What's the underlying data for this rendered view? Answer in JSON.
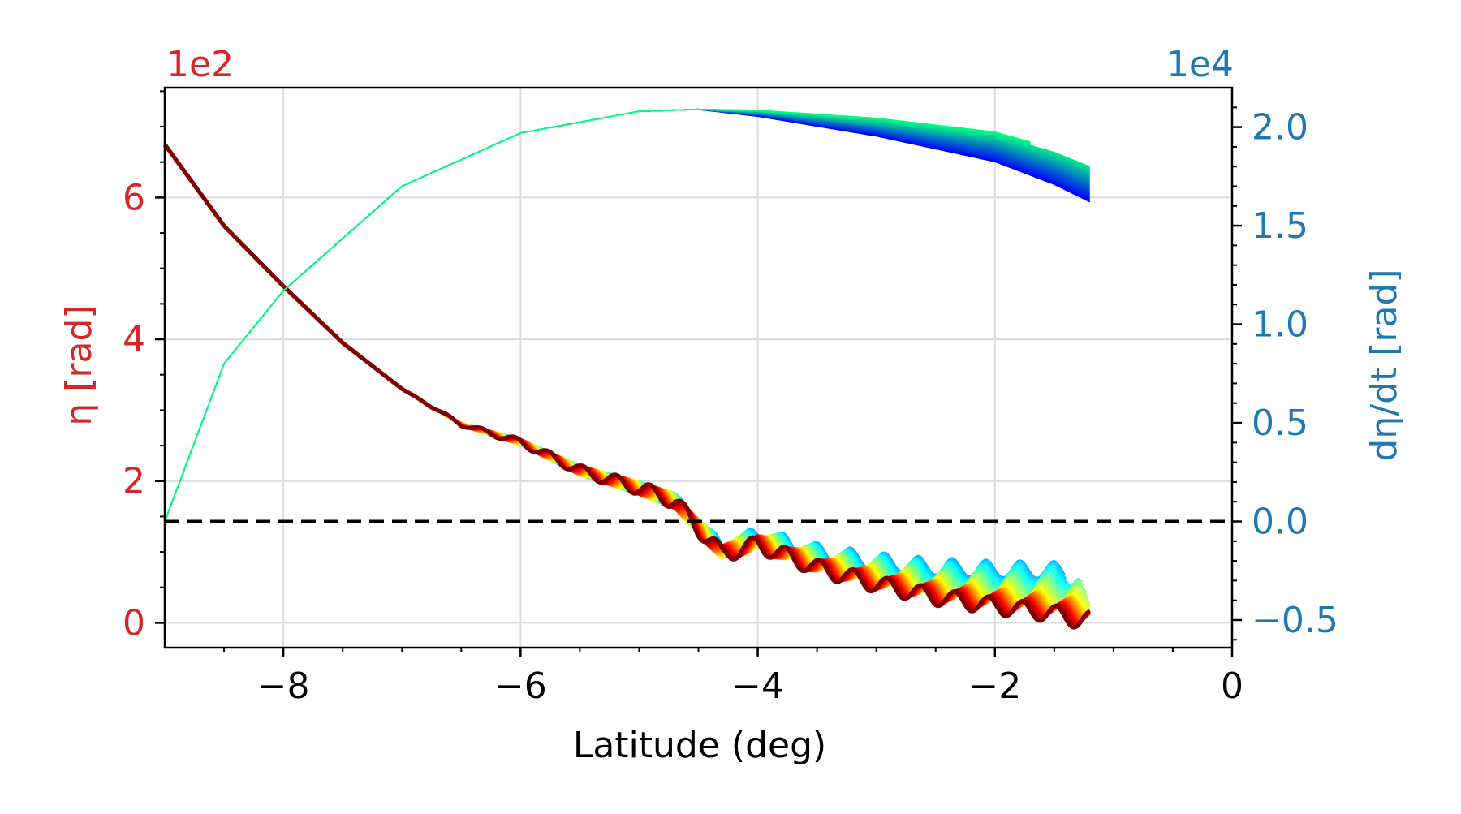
{
  "chart_data": {
    "type": "line",
    "xlabel": "Latitude (deg)",
    "ylabel_left": "η [rad]",
    "ylabel_right": "dη/dt [rad]",
    "left_offset_text": "1e2",
    "right_offset_text": "1e4",
    "xlim": [
      -9.0,
      0.0
    ],
    "ylim_left": [
      -0.35,
      7.55
    ],
    "ylim_right": [
      -0.64,
      2.2
    ],
    "x_ticks": [
      -8,
      -6,
      -4,
      -2,
      0
    ],
    "x_tick_labels": [
      "−8",
      "−6",
      "−4",
      "−2",
      "0"
    ],
    "y_left_ticks": [
      0,
      2,
      4,
      6
    ],
    "y_left_tick_labels": [
      "0",
      "2",
      "4",
      "6"
    ],
    "y_right_ticks": [
      -0.5,
      0.0,
      0.5,
      1.0,
      1.5,
      2.0
    ],
    "y_right_tick_labels": [
      "−0.5",
      "0.0",
      "0.5",
      "1.0",
      "1.5",
      "2.0"
    ],
    "grid": true,
    "zero_line": {
      "axis": "right",
      "y": 0.0,
      "style": "dashed",
      "color": "#000000"
    },
    "colors": {
      "left_axis": "#d62728",
      "right_axis": "#1f77b4"
    },
    "eta_series": {
      "axis": "left",
      "x": [
        -9.0,
        -8.5,
        -8.0,
        -7.5,
        -7.0,
        -6.5,
        -6.0,
        -5.5,
        -5.0,
        -4.7,
        -4.5,
        -4.3,
        -4.0,
        -3.5,
        -3.0,
        -2.5,
        -2.0,
        -1.5,
        -1.3
      ],
      "y": [
        6.75,
        5.6,
        4.75,
        3.95,
        3.3,
        2.8,
        2.55,
        2.15,
        1.9,
        1.72,
        1.35,
        1.0,
        1.15,
        0.85,
        0.65,
        0.5,
        0.4,
        0.32,
        0.25
      ],
      "count": 40
    },
    "deta_dt_series": {
      "axis": "right",
      "x": [
        -9.0,
        -8.5,
        -8.0,
        -7.0,
        -6.0,
        -5.0,
        -4.5,
        -4.0,
        -3.0,
        -2.0,
        -1.5,
        -1.2
      ],
      "y": [
        0.0,
        0.8,
        1.17,
        1.7,
        1.97,
        2.08,
        2.09,
        2.07,
        2.0,
        1.9,
        1.8,
        1.72
      ],
      "count": 40
    }
  }
}
